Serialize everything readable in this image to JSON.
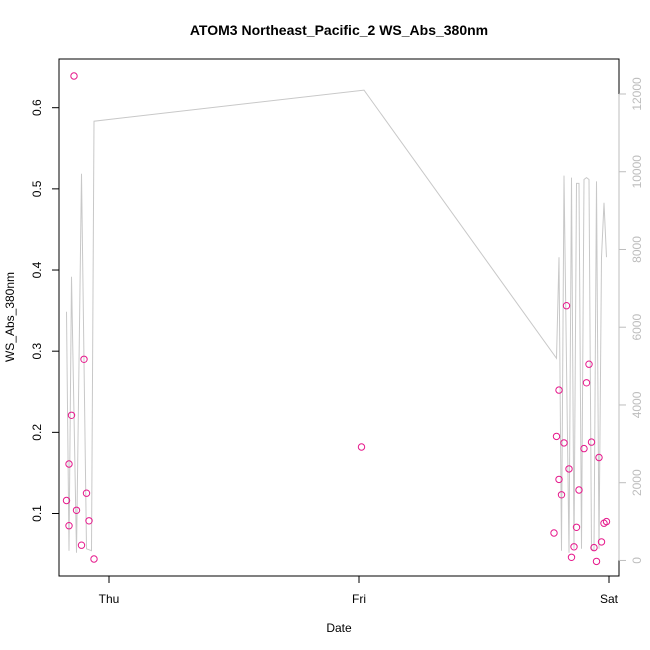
{
  "chart_data": {
    "type": "scatter",
    "title": "ATOM3 Northeast_Pacific_2 WS_Abs_380nm",
    "xlabel": "Date",
    "ylabel": "WS_Abs_380nm",
    "x_tick_labels": [
      "Thu",
      "Fri",
      "Sat"
    ],
    "x_range_days": [
      -0.2,
      2.04
    ],
    "y_left": {
      "lim": [
        0.023,
        0.66
      ],
      "ticks": [
        0.1,
        0.2,
        0.3,
        0.4,
        0.5,
        0.6
      ],
      "tick_labels": [
        "0.1",
        "0.2",
        "0.3",
        "0.4",
        "0.5",
        "0.6"
      ]
    },
    "y_right": {
      "lim": [
        -400,
        12900
      ],
      "ticks": [
        0,
        2000,
        4000,
        6000,
        8000,
        10000,
        12000
      ],
      "tick_labels": [
        "0",
        "2000",
        "4000",
        "6000",
        "8000",
        "10000",
        "12000"
      ]
    },
    "grid": false,
    "legend": "none",
    "series": [
      {
        "kind": "points",
        "axis": "left",
        "color": "#e6198c",
        "x": [
          -0.17,
          -0.16,
          -0.16,
          -0.15,
          -0.14,
          -0.13,
          -0.11,
          -0.1,
          -0.09,
          -0.08,
          -0.06,
          1.01,
          1.78,
          1.79,
          1.8,
          1.8,
          1.81,
          1.82,
          1.83,
          1.84,
          1.85,
          1.86,
          1.87,
          1.88,
          1.9,
          1.91,
          1.92,
          1.93,
          1.94,
          1.95,
          1.96,
          1.97,
          1.98,
          1.99
        ],
        "y": [
          0.116,
          0.085,
          0.161,
          0.221,
          0.639,
          0.104,
          0.061,
          0.29,
          0.125,
          0.091,
          0.044,
          0.182,
          0.076,
          0.195,
          0.252,
          0.142,
          0.123,
          0.187,
          0.356,
          0.155,
          0.046,
          0.059,
          0.083,
          0.129,
          0.18,
          0.261,
          0.284,
          0.188,
          0.058,
          0.041,
          0.169,
          0.065,
          0.088,
          0.09
        ]
      },
      {
        "kind": "line",
        "axis": "right",
        "color": "#c8c8c8",
        "x": [
          -0.17,
          -0.16,
          -0.15,
          -0.13,
          -0.11,
          -0.09,
          -0.07,
          -0.06,
          1.02,
          1.79,
          1.8,
          1.81,
          1.82,
          1.84,
          1.85,
          1.86,
          1.87,
          1.88,
          1.89,
          1.9,
          1.91,
          1.92,
          1.93,
          1.94,
          1.95,
          1.96,
          1.97,
          1.98,
          1.99
        ],
        "y": [
          6400,
          250,
          7300,
          200,
          9950,
          300,
          250,
          11300,
          12100,
          5200,
          7800,
          250,
          9900,
          200,
          9850,
          300,
          9700,
          9700,
          300,
          9800,
          9850,
          9800,
          300,
          250,
          9750,
          300,
          7800,
          9200,
          7800
        ]
      }
    ]
  }
}
